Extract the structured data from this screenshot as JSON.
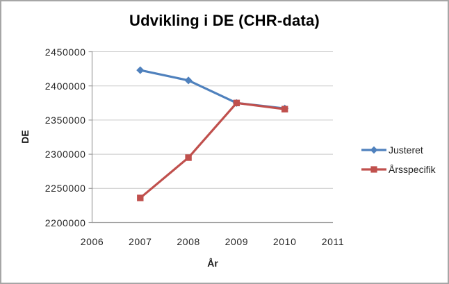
{
  "chart_data": {
    "type": "line",
    "title": "Udvikling i DE (CHR-data)",
    "xlabel": "År",
    "ylabel": "DE",
    "x": [
      2007,
      2008,
      2009,
      2010
    ],
    "series": [
      {
        "name": "Justeret",
        "color": "#4F81BD",
        "marker": "diamond",
        "values": [
          2423000,
          2408000,
          2375000,
          2367000
        ]
      },
      {
        "name": "Årsspecifik",
        "color": "#C0504D",
        "marker": "square",
        "values": [
          2236000,
          2295000,
          2375000,
          2366000
        ]
      }
    ],
    "x_axis": {
      "ticks": [
        2006,
        2007,
        2008,
        2009,
        2010,
        2011
      ],
      "range": [
        2006,
        2011
      ]
    },
    "y_axis": {
      "ticks": [
        2200000,
        2250000,
        2300000,
        2350000,
        2400000,
        2450000
      ],
      "range": [
        2200000,
        2450000
      ]
    },
    "grid": true,
    "legend_position": "right",
    "style": {
      "gridline_color": "#c9c9c9",
      "axis_color": "#9e9e9e",
      "text_color": "#232323",
      "title_color": "#000000",
      "background": "#ffffff",
      "border_color": "#a6a6a6"
    }
  }
}
